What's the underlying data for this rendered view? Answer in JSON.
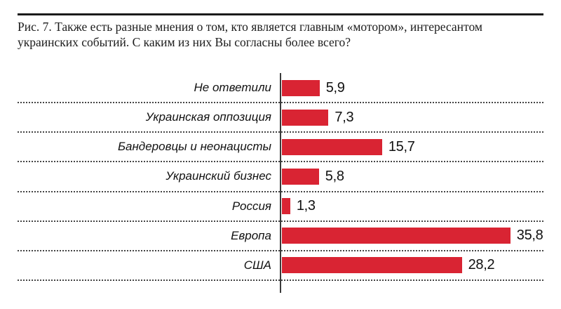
{
  "figure": {
    "caption": "Рис. 7. Также есть разные мнения о том, кто является главным «мотором», интересантом украинских событий. С каким из них Вы согласны более всего?"
  },
  "chart_data": {
    "type": "bar",
    "orientation": "horizontal",
    "title": "",
    "xlabel": "",
    "ylabel": "",
    "categories": [
      "Не ответили",
      "Украинская оппозиция",
      "Бандеровцы и неонацисты",
      "Украинский бизнес",
      "Россия",
      "Европа",
      "США"
    ],
    "values": [
      5.9,
      7.3,
      15.7,
      5.8,
      1.3,
      35.8,
      28.2
    ],
    "value_labels": [
      "5,9",
      "7,3",
      "15,7",
      "5,8",
      "1,3",
      "35,8",
      "28,2"
    ],
    "xlim": [
      0,
      40
    ],
    "grid": "dotted horizontal row separators",
    "legend": "none",
    "bar_color": "#d92433",
    "axis_color": "#3b3b3b",
    "text_color": "#1c1c1c"
  }
}
